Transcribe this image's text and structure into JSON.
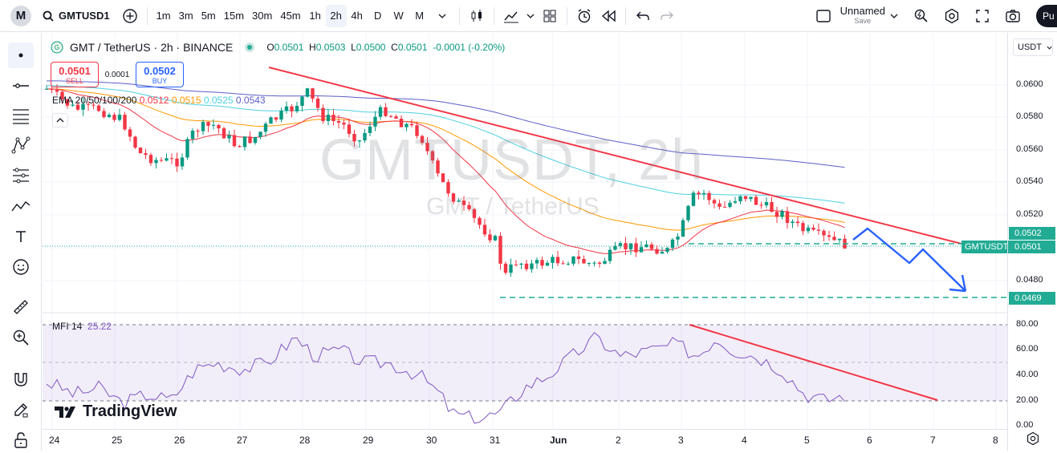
{
  "toolbar": {
    "logo_letter": "M",
    "symbol": "GMTUSD1",
    "intervals": [
      "1m",
      "3m",
      "5m",
      "15m",
      "30m",
      "45m",
      "1h",
      "2h",
      "4h",
      "D",
      "W",
      "M"
    ],
    "active_interval": "2h",
    "layout_name": "Unnamed",
    "layout_save": "Save",
    "publish_label": "Pu"
  },
  "legend": {
    "title": "GMT / TetherUS · 2h · BINANCE",
    "open_key": "O",
    "open": "0.0501",
    "high_key": "H",
    "high": "0.0503",
    "low_key": "L",
    "low": "0.0500",
    "close_key": "C",
    "close": "0.0501",
    "change": "-0.0001 (-0.20%)"
  },
  "trade": {
    "sell_price": "0.0501",
    "sell_label": "SELL",
    "spread": "0.0001",
    "buy_price": "0.0502",
    "buy_label": "BUY"
  },
  "ema": {
    "label": "EMA 20/50/100/200",
    "v20": "0.0512",
    "v50": "0.0515",
    "v100": "0.0525",
    "v200": "0.0543",
    "c20": "#f23645",
    "c50": "#ff9800",
    "c100": "#4dd0e1",
    "c200": "#5b5fc7"
  },
  "mfi": {
    "label": "MFI 14",
    "value": "25.22",
    "color": "#7e57c2"
  },
  "watermark": {
    "symbol": "GMTUSDT, 2h",
    "desc": "GMT / TetherUS"
  },
  "brand": "TradingView",
  "price_axis": {
    "currency": "USDT",
    "ticks": [
      "0.0600",
      "0.0580",
      "0.0560",
      "0.0540",
      "0.0520",
      "0.0480"
    ],
    "mfi_ticks": [
      "80.00",
      "60.00",
      "40.00",
      "20.00",
      "0.00"
    ],
    "tag_ask": "0.0502",
    "tag_last": "0.0501",
    "tag_target": "0.0469",
    "symbol_tag": "GMTUSDT"
  },
  "time_axis": [
    "24",
    "25",
    "26",
    "27",
    "28",
    "29",
    "30",
    "31",
    "Jun",
    "2",
    "3",
    "4",
    "5",
    "6",
    "7",
    "8"
  ],
  "chart_data": {
    "type": "candlestick",
    "symbol": "GMTUSDT",
    "interval": "2h",
    "ylim": [
      0.0465,
      0.0612
    ],
    "annotations": [
      {
        "kind": "trendline",
        "name": "descending resistance",
        "color": "#f23645"
      },
      {
        "kind": "horizontal",
        "price": 0.0501,
        "style": "dashed",
        "color": "#22ab94"
      },
      {
        "kind": "horizontal",
        "price": 0.0469,
        "style": "dashed",
        "color": "#22ab94"
      },
      {
        "kind": "projection-arrow",
        "color": "#2962ff"
      }
    ],
    "mfi": {
      "value": 25.22,
      "ylim": [
        0,
        80
      ],
      "bands": [
        20,
        80
      ]
    }
  }
}
